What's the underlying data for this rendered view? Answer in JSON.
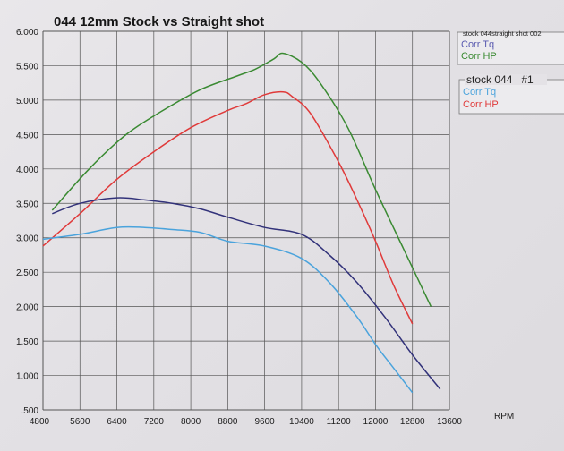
{
  "chart_data": {
    "type": "line",
    "title": "044 12mm Stock vs Straight shot",
    "xlabel": "RPM",
    "ylabel": "",
    "xlim": [
      4800,
      13600
    ],
    "ylim": [
      0.5,
      6.0
    ],
    "grid": true,
    "x_ticks": [
      "4800",
      "5600",
      "6400",
      "7200",
      "8000",
      "8800",
      "9600",
      "10400",
      "11200",
      "12000",
      "12800",
      "13600"
    ],
    "y_ticks": [
      "6.000",
      "5.500",
      "5.000",
      "4.500",
      "4.000",
      "3.500",
      "3.000",
      "2.500",
      "2.000",
      "1.500",
      "1.000",
      ".500"
    ],
    "legends": [
      {
        "group": "stock 044straight shot 002",
        "items": [
          {
            "label": "Corr Tq",
            "color": "#5a5bb0"
          },
          {
            "label": "Corr HP",
            "color": "#3a8a32"
          }
        ]
      },
      {
        "group": "stock 044   #1",
        "items": [
          {
            "label": "Corr Tq",
            "color": "#4aa3dc"
          },
          {
            "label": "Corr HP",
            "color": "#e03a3a"
          }
        ]
      }
    ],
    "series": [
      {
        "name": "straight shot Corr HP",
        "color": "#3a8a32",
        "x": [
          5000,
          5800,
          6600,
          7400,
          8200,
          9000,
          9400,
          9800,
          10000,
          10400,
          10800,
          11400,
          12000,
          12600,
          13200
        ],
        "y": [
          3.4,
          4.0,
          4.5,
          4.85,
          5.15,
          5.35,
          5.45,
          5.6,
          5.68,
          5.55,
          5.25,
          4.6,
          3.7,
          2.85,
          2.0
        ]
      },
      {
        "name": "stock Corr HP",
        "color": "#e03a3a",
        "x": [
          4800,
          5600,
          6400,
          7200,
          8000,
          8800,
          9200,
          9600,
          10000,
          10200,
          10600,
          11200,
          11600,
          12000,
          12400,
          12800
        ],
        "y": [
          2.88,
          3.35,
          3.85,
          4.25,
          4.6,
          4.85,
          4.95,
          5.08,
          5.12,
          5.05,
          4.8,
          4.1,
          3.55,
          2.95,
          2.3,
          1.75
        ]
      },
      {
        "name": "straight shot Corr Tq",
        "color": "#32327a",
        "x": [
          5000,
          5600,
          6400,
          7000,
          7600,
          8200,
          8800,
          9600,
          10400,
          11000,
          11600,
          12200,
          12800,
          13400
        ],
        "y": [
          3.35,
          3.5,
          3.58,
          3.55,
          3.5,
          3.42,
          3.3,
          3.15,
          3.05,
          2.75,
          2.35,
          1.85,
          1.3,
          0.8
        ]
      },
      {
        "name": "stock Corr Tq",
        "color": "#4aa3dc",
        "x": [
          4800,
          5600,
          6400,
          7000,
          7600,
          8200,
          8800,
          9600,
          10400,
          11000,
          11600,
          12000,
          12400,
          12800
        ],
        "y": [
          2.98,
          3.05,
          3.15,
          3.15,
          3.12,
          3.08,
          2.95,
          2.88,
          2.7,
          2.35,
          1.85,
          1.45,
          1.1,
          0.75
        ]
      }
    ]
  }
}
